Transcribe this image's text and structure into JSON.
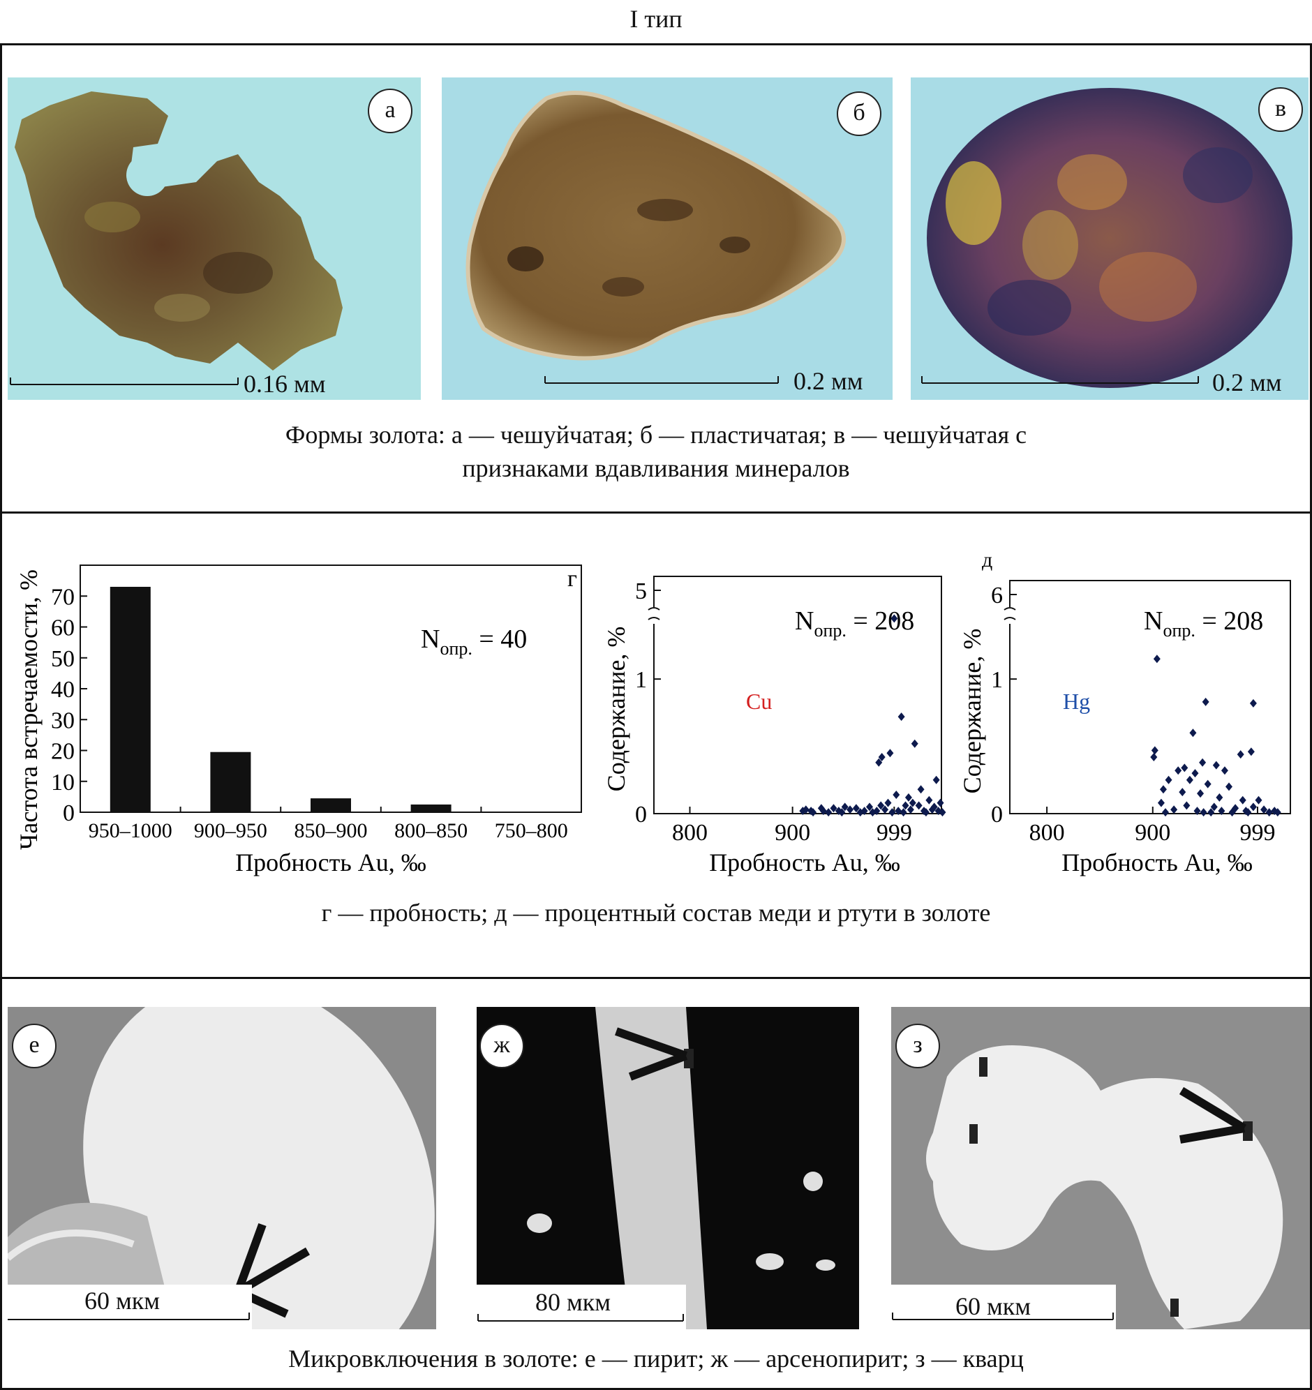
{
  "figure_title": "I тип",
  "panel1": {
    "photos": [
      {
        "label": "а",
        "scale": "0.16 мм"
      },
      {
        "label": "б",
        "scale": "0.2 мм"
      },
      {
        "label": "в",
        "scale": "0.2 мм"
      }
    ],
    "caption_line1": "Формы золота: а — чешуйчатая; б — пластичатая; в — чешуйчатая с",
    "caption_line2": "признаками вдавливания минералов"
  },
  "panel2": {
    "caption": "г — пробность; д — процентный состав меди и ртути в золоте"
  },
  "chart_data": [
    {
      "type": "bar",
      "panel_label": "г",
      "categories": [
        "950–1000",
        "900–950",
        "850–900",
        "800–850",
        "750–800"
      ],
      "values": [
        73,
        19.5,
        4.5,
        2.5,
        0
      ],
      "ylabel": "Частота встречаемости, %",
      "xlabel": "Пробность Au, ‰",
      "yticks": [
        "0",
        "10",
        "20",
        "30",
        "40",
        "50",
        "60",
        "70"
      ],
      "ylim": [
        0,
        80
      ],
      "annotation_n": "N",
      "annotation_sub": "опр.",
      "annotation_val": " = 40"
    },
    {
      "type": "scatter",
      "element": "Cu",
      "element_color": "#d42020",
      "point_color": "#0d1a4d",
      "ylabel": "Содержание, %",
      "xlabel": "Пробность Au, ‰",
      "xticks": [
        "800",
        "900",
        "999"
      ],
      "yticks": [
        "0",
        "1",
        "5"
      ],
      "xlim": [
        765,
        1045
      ],
      "ylim": [
        0,
        1.4
      ],
      "axis_break": "between 1.4 and 5",
      "annotation_n": "N",
      "annotation_sub": "опр.",
      "annotation_val": " = 208",
      "points_estimated": [
        [
          999,
          1.45
        ],
        [
          1006,
          0.72
        ],
        [
          1019,
          0.52
        ],
        [
          995,
          0.45
        ],
        [
          987,
          0.42
        ],
        [
          984,
          0.38
        ],
        [
          1040,
          0.25
        ],
        [
          1025,
          0.18
        ],
        [
          1001,
          0.14
        ],
        [
          1013,
          0.12
        ],
        [
          1033,
          0.1
        ],
        [
          1044,
          0.08
        ],
        [
          993,
          0.08
        ],
        [
          1023,
          0.06
        ],
        [
          1010,
          0.06
        ],
        [
          975,
          0.05
        ],
        [
          962,
          0.04
        ],
        [
          951,
          0.05
        ],
        [
          940,
          0.04
        ],
        [
          928,
          0.04
        ],
        [
          918,
          0.02
        ],
        [
          910,
          0.02
        ],
        [
          930,
          0.02
        ],
        [
          945,
          0.02
        ],
        [
          956,
          0.03
        ],
        [
          970,
          0.02
        ],
        [
          982,
          0.02
        ],
        [
          990,
          0.03
        ],
        [
          1003,
          0.02
        ],
        [
          1015,
          0.03
        ],
        [
          1028,
          0.02
        ],
        [
          1036,
          0.03
        ],
        [
          1042,
          0.02
        ],
        [
          920,
          0.01
        ],
        [
          935,
          0.01
        ],
        [
          966,
          0.01
        ],
        [
          978,
          0.01
        ],
        [
          997,
          0.01
        ],
        [
          1008,
          0.01
        ],
        [
          1030,
          0.01
        ],
        [
          1046,
          0.01
        ],
        [
          913,
          0.03
        ],
        [
          948,
          0.01
        ],
        [
          986,
          0.06
        ],
        [
          1017,
          0.08
        ],
        [
          1038,
          0.05
        ]
      ]
    },
    {
      "type": "scatter",
      "panel_label": "д",
      "element": "Hg",
      "element_color": "#1f4fa8",
      "point_color": "#0d1a4d",
      "ylabel": "Содержание, %",
      "xlabel": "Пробность Au, ‰",
      "xticks": [
        "800",
        "900",
        "999"
      ],
      "yticks": [
        "0",
        "1",
        "6"
      ],
      "xlim": [
        765,
        1030
      ],
      "ylim": [
        0,
        1.4
      ],
      "axis_break": "between 1.4 and 6",
      "annotation_n": "N",
      "annotation_sub": "опр.",
      "annotation_val": " = 208",
      "points_estimated": [
        [
          904,
          1.15
        ],
        [
          950,
          0.83
        ],
        [
          995,
          0.82
        ],
        [
          938,
          0.6
        ],
        [
          993,
          0.46
        ],
        [
          983,
          0.44
        ],
        [
          902,
          0.47
        ],
        [
          901,
          0.42
        ],
        [
          947,
          0.38
        ],
        [
          930,
          0.34
        ],
        [
          960,
          0.36
        ],
        [
          924,
          0.32
        ],
        [
          940,
          0.3
        ],
        [
          968,
          0.32
        ],
        [
          915,
          0.25
        ],
        [
          935,
          0.25
        ],
        [
          952,
          0.22
        ],
        [
          972,
          0.2
        ],
        [
          910,
          0.18
        ],
        [
          928,
          0.16
        ],
        [
          945,
          0.15
        ],
        [
          963,
          0.12
        ],
        [
          985,
          0.1
        ],
        [
          1000,
          0.1
        ],
        [
          908,
          0.08
        ],
        [
          932,
          0.06
        ],
        [
          958,
          0.05
        ],
        [
          978,
          0.04
        ],
        [
          995,
          0.05
        ],
        [
          1005,
          0.03
        ],
        [
          920,
          0.03
        ],
        [
          942,
          0.02
        ],
        [
          965,
          0.02
        ],
        [
          988,
          0.02
        ],
        [
          912,
          0.01
        ],
        [
          948,
          0.01
        ],
        [
          975,
          0.01
        ],
        [
          1010,
          0.01
        ],
        [
          1015,
          0.02
        ],
        [
          1018,
          0.01
        ],
        [
          990,
          0.01
        ],
        [
          955,
          0.01
        ]
      ]
    }
  ],
  "panel3": {
    "photos": [
      {
        "label": "е",
        "scale": "60 мкм"
      },
      {
        "label": "ж",
        "scale": "80 мкм"
      },
      {
        "label": "з",
        "scale": "60 мкм"
      }
    ],
    "caption": "Микровключения в золоте: е — пирит; ж — арсенопирит; з — кварц"
  }
}
